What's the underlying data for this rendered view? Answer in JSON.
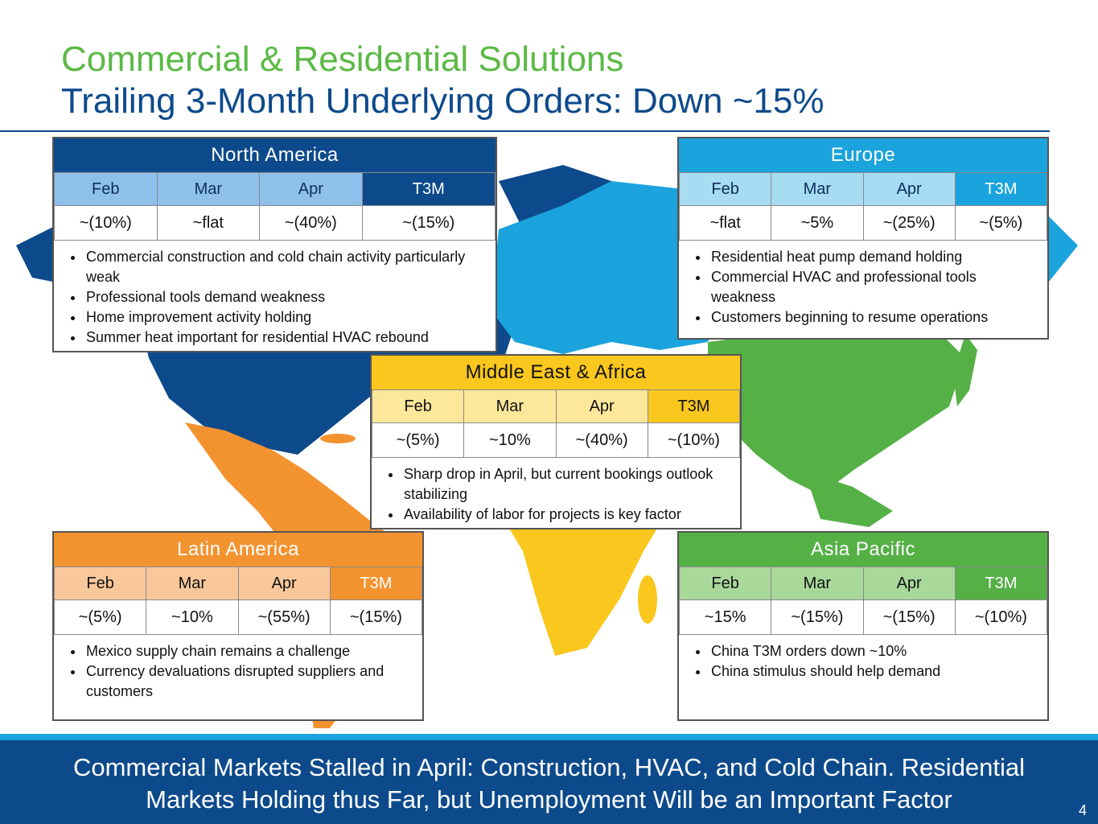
{
  "title": {
    "line1": "Commercial & Residential Solutions",
    "line2": "Trailing 3-Month Underlying Orders: Down ~15%"
  },
  "colors": {
    "green": "#5cb946",
    "navy": "#0d4a8b",
    "north_america": "#0d4a8b",
    "europe": "#1aa3dc",
    "mea": "#f9c71d",
    "latam": "#f39330",
    "apac": "#55b046"
  },
  "regions": {
    "north_america": {
      "name": "North America",
      "months": [
        "Feb",
        "Mar",
        "Apr",
        "T3M"
      ],
      "values": [
        "~(10%)",
        "~flat",
        "~(40%)",
        "~(15%)"
      ],
      "bullets": [
        "Commercial construction and cold chain activity particularly weak",
        "Professional tools demand weakness",
        "Home improvement activity holding",
        "Summer heat important for residential HVAC rebound"
      ]
    },
    "europe": {
      "name": "Europe",
      "months": [
        "Feb",
        "Mar",
        "Apr",
        "T3M"
      ],
      "values": [
        "~flat",
        "~5%",
        "~(25%)",
        "~(5%)"
      ],
      "bullets": [
        "Residential heat pump demand holding",
        "Commercial HVAC and professional tools weakness",
        "Customers beginning to resume operations"
      ]
    },
    "mea": {
      "name": "Middle East & Africa",
      "months": [
        "Feb",
        "Mar",
        "Apr",
        "T3M"
      ],
      "values": [
        "~(5%)",
        "~10%",
        "~(40%)",
        "~(10%)"
      ],
      "bullets": [
        "Sharp drop in April, but current bookings outlook stabilizing",
        "Availability of labor for projects is key factor"
      ]
    },
    "latam": {
      "name": "Latin America",
      "months": [
        "Feb",
        "Mar",
        "Apr",
        "T3M"
      ],
      "values": [
        "~(5%)",
        "~10%",
        "~(55%)",
        "~(15%)"
      ],
      "bullets": [
        "Mexico supply chain remains a challenge",
        "Currency devaluations disrupted suppliers and customers"
      ]
    },
    "apac": {
      "name": "Asia Pacific",
      "months": [
        "Feb",
        "Mar",
        "Apr",
        "T3M"
      ],
      "values": [
        "~15%",
        "~(15%)",
        "~(15%)",
        "~(10%)"
      ],
      "bullets": [
        "China T3M orders down ~10%",
        "China stimulus should help demand"
      ]
    }
  },
  "footer": {
    "line1": "Commercial Markets Stalled in April: Construction, HVAC, and Cold Chain. Residential",
    "line2": "Markets Holding thus Far, but Unemployment Will be an Important Factor",
    "page_number": "4"
  }
}
